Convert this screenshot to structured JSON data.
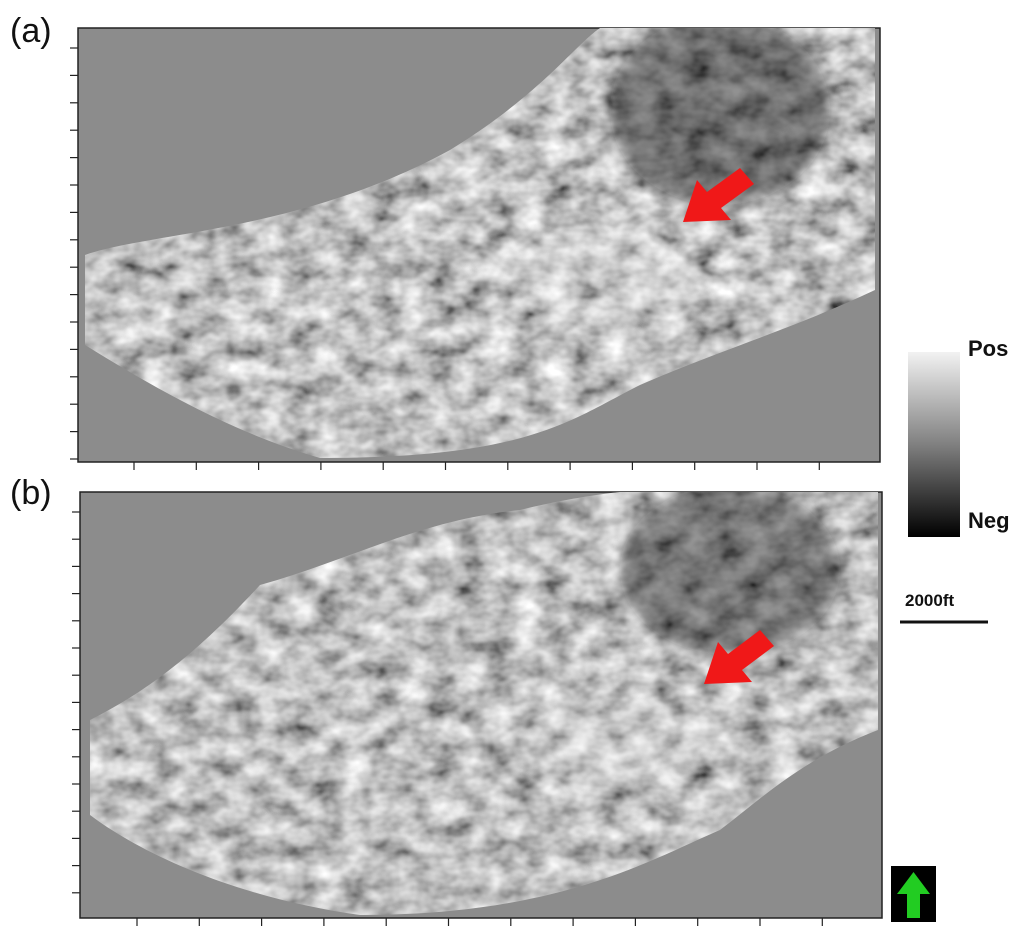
{
  "panels": [
    {
      "label": "(a)"
    },
    {
      "label": "(b)"
    }
  ],
  "colorbar": {
    "max_label": "Pos",
    "min_label": "Neg"
  },
  "scale_bar": {
    "label": "2000ft"
  }
}
